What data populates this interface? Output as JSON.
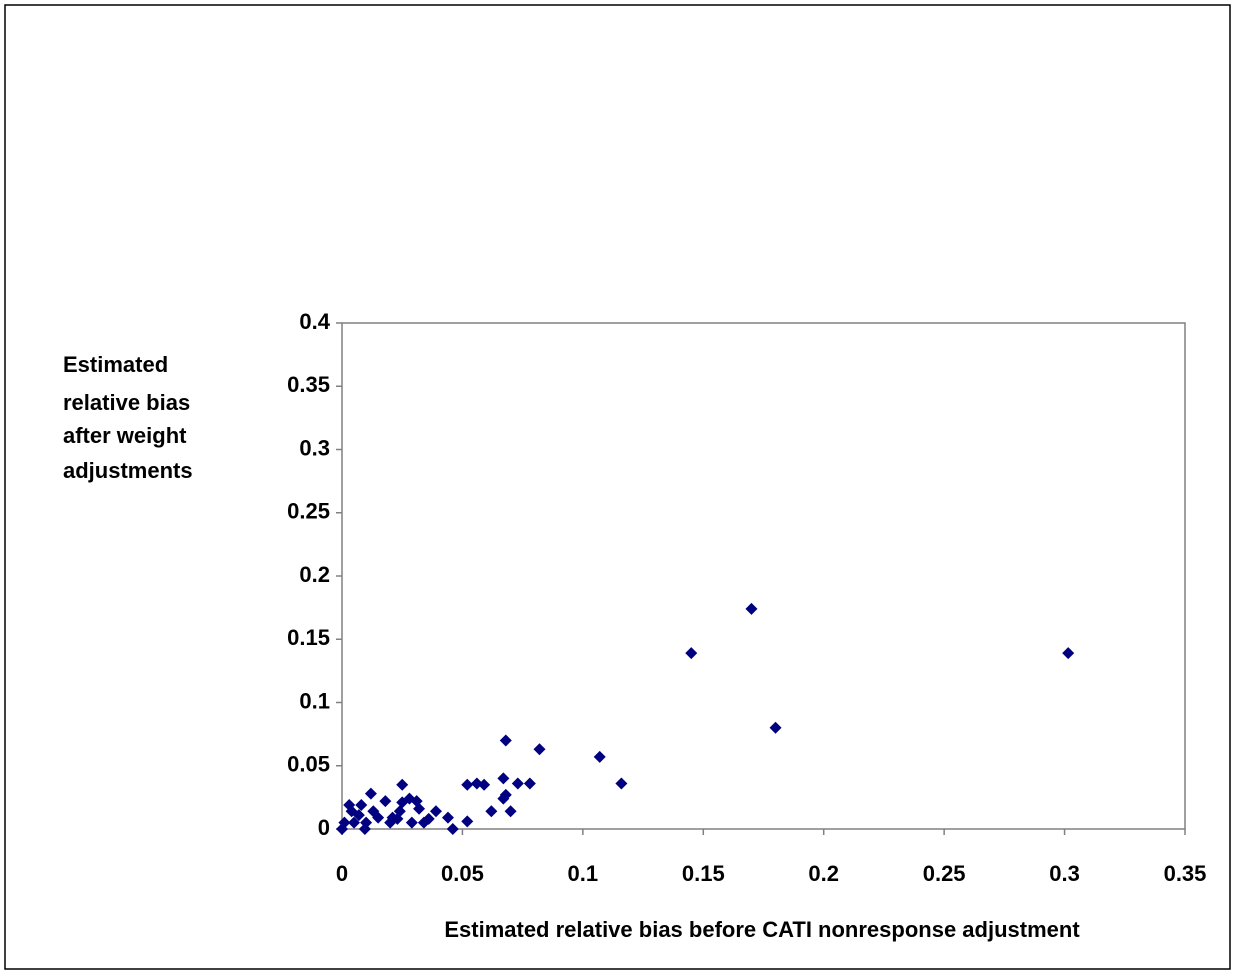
{
  "chart_data": {
    "type": "scatter",
    "xlabel": "Estimated relative bias before CATI nonresponse adjustment",
    "ylabel": [
      "Estimated",
      "relative bias",
      "after weight",
      "adjustments"
    ],
    "color": "#000080",
    "xlim": [
      0,
      0.35
    ],
    "xticks": [
      0,
      0.05,
      0.1,
      0.15,
      0.2,
      0.25,
      0.3,
      0.35
    ],
    "ylim": [
      0,
      0.4
    ],
    "yticks": [
      0,
      0.05,
      0.1,
      0.15,
      0.2,
      0.25,
      0.3,
      0.35,
      0.4
    ],
    "grid": false,
    "x": [
      0.17,
      0.145,
      0.3015,
      0.18,
      0.107,
      0.116,
      0.082,
      0.068,
      0.067,
      0.068,
      0.067,
      0.07,
      0.062,
      0.078,
      0.073,
      0.059,
      0.056,
      0.052,
      0.052,
      0.046,
      0.044,
      0.039,
      0.036,
      0.034,
      0.032,
      0.031,
      0.028,
      0.025,
      0.025,
      0.024,
      0.021,
      0.02,
      0.018,
      0.015,
      0.012,
      0.013,
      0.01,
      0.0095,
      0.008,
      0.005,
      0.003,
      0.001,
      0,
      0.004,
      0.007,
      0.029,
      0.023
    ],
    "values": [
      0.174,
      0.139,
      0.139,
      0.08,
      0.057,
      0.036,
      0.063,
      0.07,
      0.04,
      0.027,
      0.024,
      0.014,
      0.014,
      0.036,
      0.036,
      0.035,
      0.036,
      0.035,
      0.006,
      0,
      0.009,
      0.014,
      0.008,
      0.005,
      0.016,
      0.022,
      0.024,
      0.035,
      0.021,
      0.014,
      0.009,
      0.005,
      0.022,
      0.009,
      0.028,
      0.014,
      0.005,
      0,
      0.019,
      0.005,
      0.019,
      0.005,
      0,
      0.014,
      0.011,
      0.005,
      0.008
    ]
  }
}
